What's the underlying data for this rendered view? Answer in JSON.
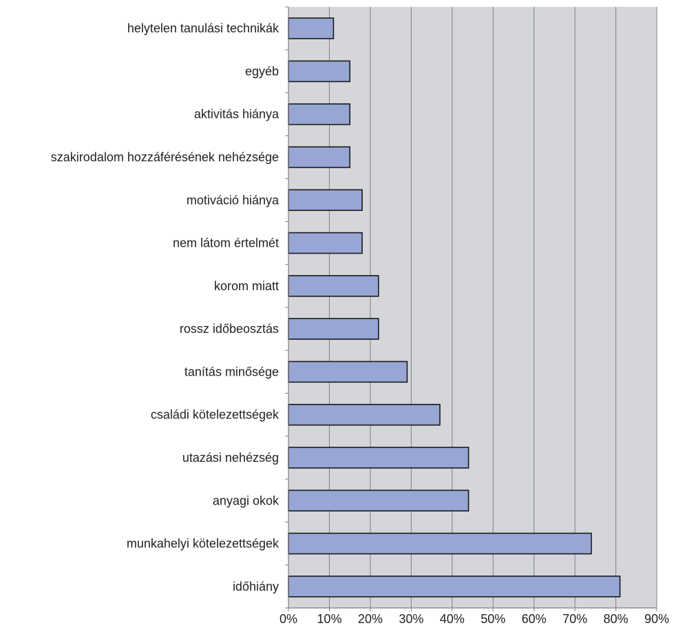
{
  "chart_data": {
    "type": "bar",
    "orientation": "horizontal",
    "categories": [
      "helytelen tanulási technikák",
      "egyéb",
      "aktivitás hiánya",
      "szakirodalom hozzáférésének nehézsége",
      "motiváció hiánya",
      "nem látom értelmét",
      "korom miatt",
      "rossz időbeosztás",
      "tanítás minősége",
      "családi kötelezettségek",
      "utazási nehézség",
      "anyagi okok",
      "munkahelyi kötelezettségek",
      "időhiány"
    ],
    "values": [
      11,
      15,
      15,
      15,
      18,
      18,
      22,
      22,
      29,
      37,
      44,
      44,
      74,
      81
    ],
    "xlim": [
      0,
      90
    ],
    "xticks": [
      0,
      10,
      20,
      30,
      40,
      50,
      60,
      70,
      80,
      90
    ],
    "tick_format": "percent",
    "title": "",
    "xlabel": "",
    "ylabel": "",
    "grid": "vertical",
    "legend": "none",
    "colors": {
      "bar_fill": "#97a6d4",
      "bar_stroke": "#1a1a1a",
      "plot_background": "#d4d6d9",
      "gridline": "#7f7f7f",
      "axis": "#7f7f7f"
    }
  }
}
